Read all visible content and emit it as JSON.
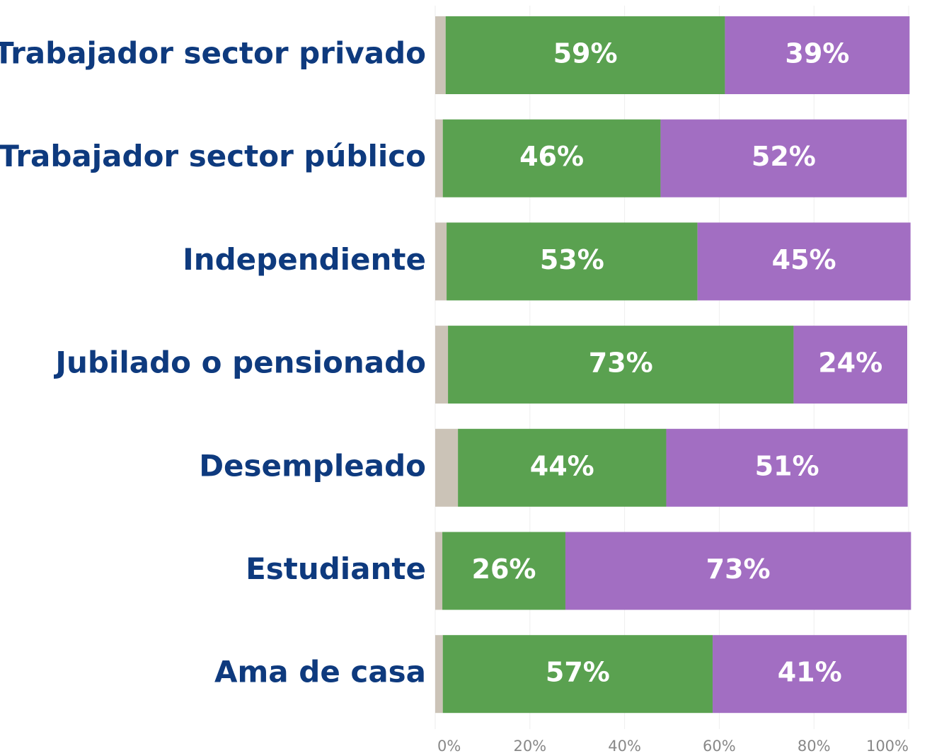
{
  "chart_data": {
    "type": "stacked_bar_horizontal",
    "categories": [
      "Trabajador sector privado",
      "Trabajador sector público",
      "Independiente",
      "Jubilado o pensionado",
      "Desempleado",
      "Estudiante",
      "Ama de casa"
    ],
    "series": [
      {
        "color": "#cbc3b7",
        "values": [
          2.2,
          1.6,
          2.4,
          2.7,
          4.8,
          1.5,
          1.6
        ]
      },
      {
        "color": "#5aa150",
        "values": [
          59,
          46,
          53,
          73,
          44,
          26,
          57
        ],
        "value_labels": [
          "59%",
          "46%",
          "53%",
          "73%",
          "44%",
          "26%",
          "57%"
        ]
      },
      {
        "color": "#a26ec2",
        "values": [
          39,
          52,
          45,
          24,
          51,
          73,
          41
        ],
        "value_labels": [
          "39%",
          "52%",
          "45%",
          "24%",
          "51%",
          "73%",
          "41%"
        ]
      }
    ],
    "xlim": [
      0,
      100
    ],
    "xticks": [
      {
        "value": 0,
        "label": "0%"
      },
      {
        "value": 20,
        "label": "20%"
      },
      {
        "value": 40,
        "label": "40%"
      },
      {
        "value": 60,
        "label": "60%"
      },
      {
        "value": 80,
        "label": "80%"
      },
      {
        "value": 100,
        "label": "100%"
      }
    ],
    "grid": true
  }
}
